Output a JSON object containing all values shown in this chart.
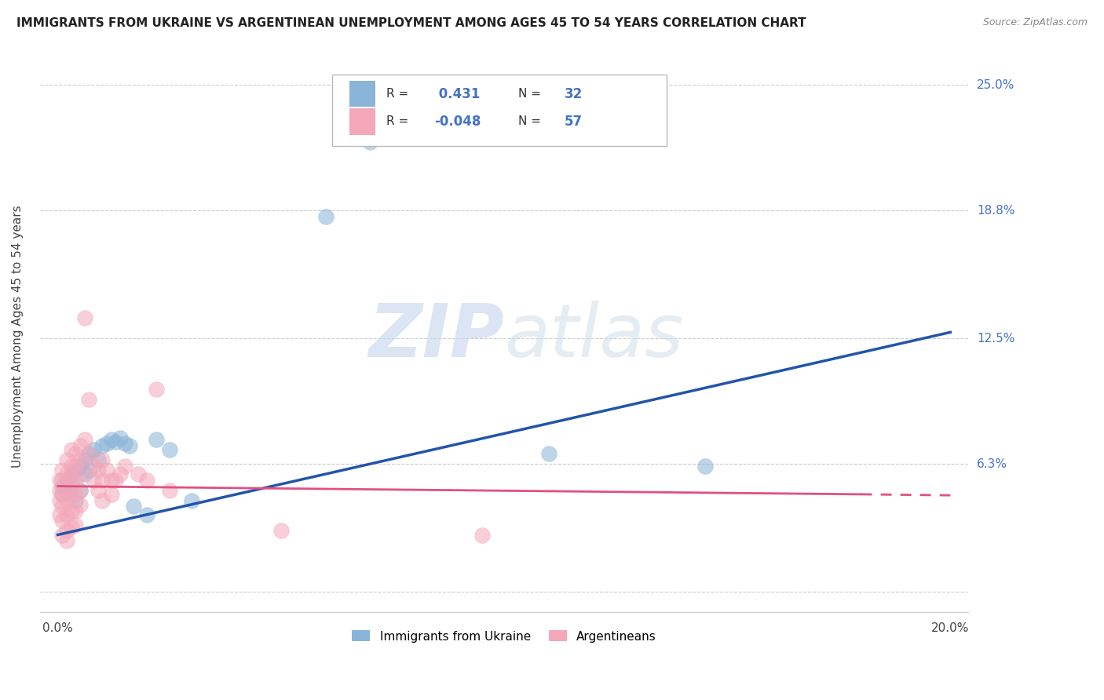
{
  "title": "IMMIGRANTS FROM UKRAINE VS ARGENTINEAN UNEMPLOYMENT AMONG AGES 45 TO 54 YEARS CORRELATION CHART",
  "source": "Source: ZipAtlas.com",
  "ylabel": "Unemployment Among Ages 45 to 54 years",
  "xlim": [
    -0.004,
    0.204
  ],
  "ylim": [
    -0.01,
    0.262
  ],
  "right_ytick_vals": [
    0.063,
    0.125,
    0.188,
    0.25
  ],
  "right_ytick_labels": [
    "6.3%",
    "12.5%",
    "18.8%",
    "25.0%"
  ],
  "grid_color": "#cccccc",
  "background_color": "#ffffff",
  "watermark_zip": "ZIP",
  "watermark_atlas": "atlas",
  "ukraine_color": "#8ab4d8",
  "argentina_color": "#f4a7b9",
  "ukraine_line_color": "#2255aa",
  "argentina_line_color": "#e05080",
  "ukraine_R": 0.431,
  "ukraine_N": 32,
  "argentina_R": -0.048,
  "argentina_N": 57,
  "ukraine_line_x0": 0.0,
  "ukraine_line_y0": 0.028,
  "ukraine_line_x1": 0.2,
  "ukraine_line_y1": 0.128,
  "argentina_line_x0": 0.0,
  "argentina_line_y0": 0.052,
  "argentina_line_x1": 0.18,
  "argentina_line_y1": 0.048,
  "argentina_line_dash_x0": 0.18,
  "argentina_line_dash_y0": 0.048,
  "argentina_line_dash_x1": 0.2,
  "argentina_line_dash_y1": 0.0475,
  "ukraine_scatter": [
    [
      0.001,
      0.052
    ],
    [
      0.001,
      0.048
    ],
    [
      0.002,
      0.055
    ],
    [
      0.002,
      0.05
    ],
    [
      0.003,
      0.058
    ],
    [
      0.003,
      0.053
    ],
    [
      0.004,
      0.06
    ],
    [
      0.004,
      0.045
    ],
    [
      0.005,
      0.062
    ],
    [
      0.005,
      0.05
    ],
    [
      0.006,
      0.065
    ],
    [
      0.006,
      0.058
    ],
    [
      0.007,
      0.068
    ],
    [
      0.007,
      0.06
    ],
    [
      0.008,
      0.07
    ],
    [
      0.009,
      0.065
    ],
    [
      0.01,
      0.072
    ],
    [
      0.011,
      0.073
    ],
    [
      0.012,
      0.075
    ],
    [
      0.013,
      0.074
    ],
    [
      0.014,
      0.076
    ],
    [
      0.015,
      0.073
    ],
    [
      0.016,
      0.072
    ],
    [
      0.017,
      0.042
    ],
    [
      0.02,
      0.038
    ],
    [
      0.022,
      0.075
    ],
    [
      0.025,
      0.07
    ],
    [
      0.03,
      0.045
    ],
    [
      0.06,
      0.185
    ],
    [
      0.07,
      0.222
    ],
    [
      0.11,
      0.068
    ],
    [
      0.145,
      0.062
    ]
  ],
  "argentina_scatter": [
    [
      0.0005,
      0.055
    ],
    [
      0.0005,
      0.05
    ],
    [
      0.0005,
      0.045
    ],
    [
      0.0005,
      0.038
    ],
    [
      0.001,
      0.06
    ],
    [
      0.001,
      0.055
    ],
    [
      0.001,
      0.048
    ],
    [
      0.001,
      0.042
    ],
    [
      0.001,
      0.035
    ],
    [
      0.001,
      0.028
    ],
    [
      0.002,
      0.065
    ],
    [
      0.002,
      0.058
    ],
    [
      0.002,
      0.052
    ],
    [
      0.002,
      0.045
    ],
    [
      0.002,
      0.038
    ],
    [
      0.002,
      0.03
    ],
    [
      0.002,
      0.025
    ],
    [
      0.003,
      0.07
    ],
    [
      0.003,
      0.062
    ],
    [
      0.003,
      0.055
    ],
    [
      0.003,
      0.048
    ],
    [
      0.003,
      0.04
    ],
    [
      0.003,
      0.032
    ],
    [
      0.004,
      0.068
    ],
    [
      0.004,
      0.062
    ],
    [
      0.004,
      0.055
    ],
    [
      0.004,
      0.048
    ],
    [
      0.004,
      0.04
    ],
    [
      0.004,
      0.033
    ],
    [
      0.005,
      0.072
    ],
    [
      0.005,
      0.065
    ],
    [
      0.005,
      0.058
    ],
    [
      0.005,
      0.05
    ],
    [
      0.005,
      0.043
    ],
    [
      0.006,
      0.135
    ],
    [
      0.006,
      0.075
    ],
    [
      0.007,
      0.095
    ],
    [
      0.007,
      0.068
    ],
    [
      0.008,
      0.062
    ],
    [
      0.008,
      0.055
    ],
    [
      0.009,
      0.06
    ],
    [
      0.009,
      0.05
    ],
    [
      0.01,
      0.065
    ],
    [
      0.01,
      0.055
    ],
    [
      0.01,
      0.045
    ],
    [
      0.011,
      0.06
    ],
    [
      0.012,
      0.055
    ],
    [
      0.012,
      0.048
    ],
    [
      0.013,
      0.055
    ],
    [
      0.014,
      0.058
    ],
    [
      0.015,
      0.062
    ],
    [
      0.018,
      0.058
    ],
    [
      0.02,
      0.055
    ],
    [
      0.022,
      0.1
    ],
    [
      0.025,
      0.05
    ],
    [
      0.05,
      0.03
    ],
    [
      0.095,
      0.028
    ]
  ]
}
